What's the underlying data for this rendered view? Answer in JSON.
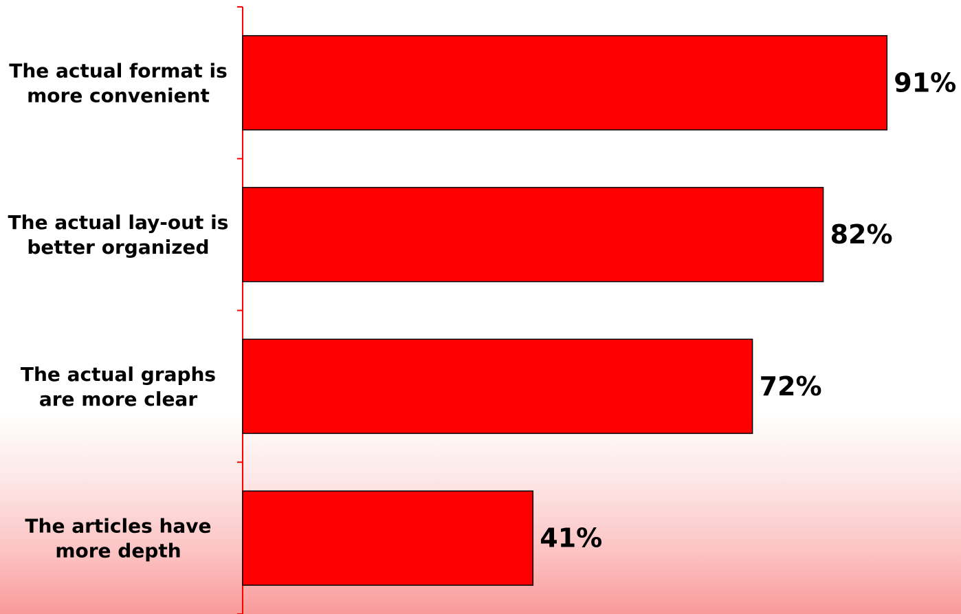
{
  "chart_data": {
    "type": "bar",
    "orientation": "horizontal",
    "categories": [
      [
        "The actual format is",
        "more convenient"
      ],
      [
        "The actual lay-out is",
        "better organized"
      ],
      [
        "The actual graphs",
        "are more clear"
      ],
      [
        "The articles have",
        "more depth"
      ]
    ],
    "values": [
      91,
      82,
      72,
      41
    ],
    "value_labels": [
      "91%",
      "82%",
      "72%",
      "41%"
    ],
    "xlim": [
      0,
      100
    ],
    "bar_color": "#ff0000",
    "axis_color": "#ff0000",
    "grid": false,
    "legend": "none"
  }
}
